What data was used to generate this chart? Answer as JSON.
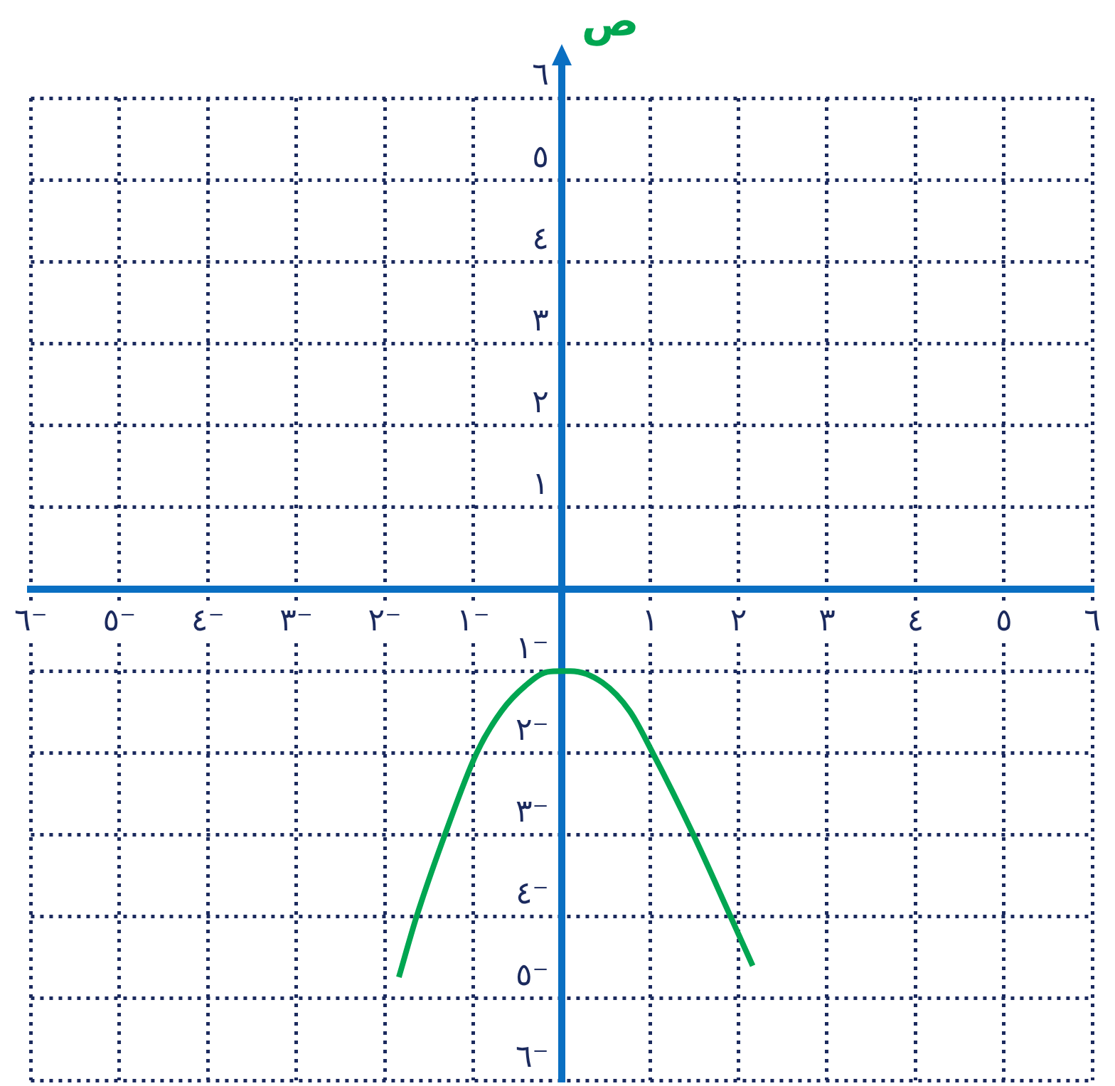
{
  "chart_data": {
    "type": "line",
    "ylabel": "ص",
    "xlim": [
      -6,
      6
    ],
    "ylim": [
      -6,
      6
    ],
    "xticks": [
      {
        "value": -6,
        "label": "٦⁻"
      },
      {
        "value": -5,
        "label": "٥⁻"
      },
      {
        "value": -4,
        "label": "٤⁻"
      },
      {
        "value": -3,
        "label": "٣⁻"
      },
      {
        "value": -2,
        "label": "٢⁻"
      },
      {
        "value": -1,
        "label": "١⁻"
      },
      {
        "value": 0,
        "label": null
      },
      {
        "value": 1,
        "label": "١"
      },
      {
        "value": 2,
        "label": "٢"
      },
      {
        "value": 3,
        "label": "٣"
      },
      {
        "value": 4,
        "label": "٤"
      },
      {
        "value": 5,
        "label": "٥"
      },
      {
        "value": 6,
        "label": "٦"
      }
    ],
    "yticks": [
      {
        "value": -6,
        "label": "٦⁻"
      },
      {
        "value": -5,
        "label": "٥⁻"
      },
      {
        "value": -4,
        "label": "٤⁻"
      },
      {
        "value": -3,
        "label": "٣⁻"
      },
      {
        "value": -2,
        "label": "٢⁻"
      },
      {
        "value": -1,
        "label": "١⁻"
      },
      {
        "value": 0,
        "label": null
      },
      {
        "value": 1,
        "label": "١"
      },
      {
        "value": 2,
        "label": "٢"
      },
      {
        "value": 3,
        "label": "٣"
      },
      {
        "value": 4,
        "label": "٤"
      },
      {
        "value": 5,
        "label": "٥"
      },
      {
        "value": 6,
        "label": "٦"
      }
    ],
    "grid": true,
    "line_style": "solid",
    "series": [
      {
        "color": "#00a651",
        "x": [
          -1.84,
          -1.64,
          -1.32,
          -0.96,
          -0.68,
          -0.41,
          -0.16,
          0,
          0.1,
          0.46,
          0.77,
          1.03,
          1.49,
          1.91,
          2.16
        ],
        "values": [
          -4.74,
          -4.0,
          -3.0,
          -2.0,
          -1.49,
          -1.18,
          -1.01,
          -1.0,
          -1.0,
          -1.14,
          -1.49,
          -2.0,
          -3.0,
          -4.0,
          -4.6
        ]
      }
    ]
  }
}
